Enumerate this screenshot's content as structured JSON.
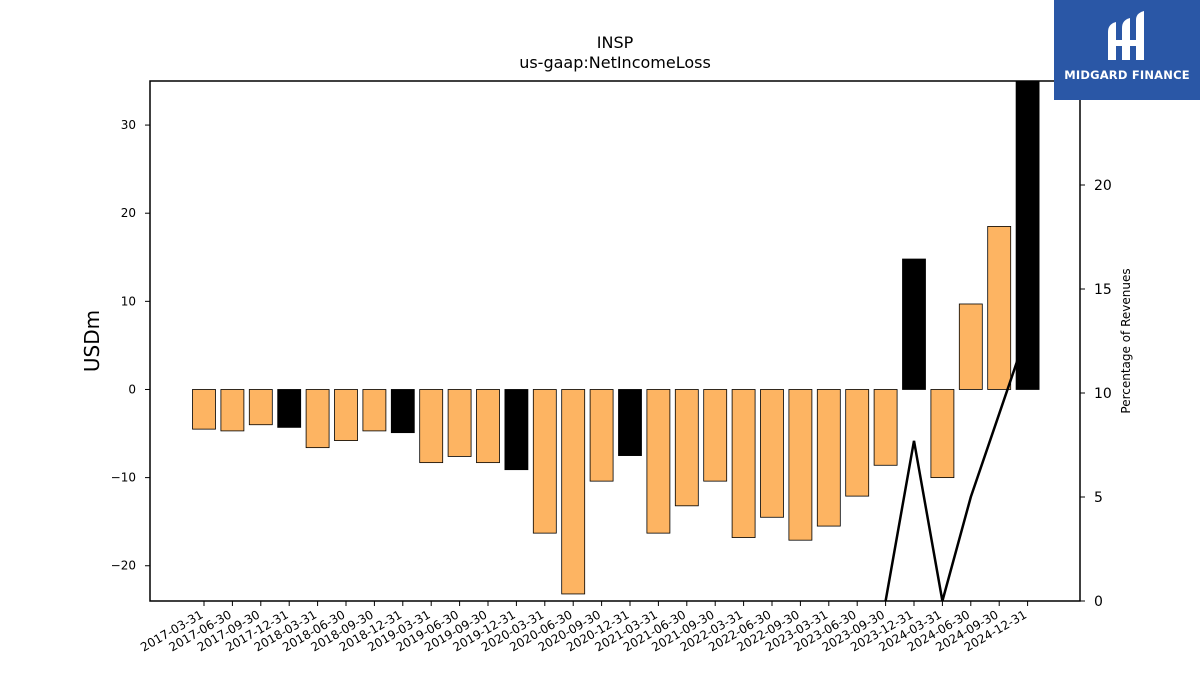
{
  "chart_data": {
    "type": "bar",
    "title": "INSP",
    "subtitle": "us-gaap:NetIncomeLoss",
    "ylabel": "USDm",
    "y2label": "Percentage of Revenues",
    "ylim": [
      -24,
      35
    ],
    "y2lim": [
      0,
      25
    ],
    "yticks": [
      -20,
      -10,
      0,
      10,
      20,
      30
    ],
    "y2ticks": [
      0,
      5,
      10,
      15,
      20
    ],
    "categories": [
      "2017-03-31",
      "2017-06-30",
      "2017-09-30",
      "2017-12-31",
      "2018-03-31",
      "2018-06-30",
      "2018-09-30",
      "2018-12-31",
      "2019-03-31",
      "2019-06-30",
      "2019-09-30",
      "2019-12-31",
      "2020-03-31",
      "2020-06-30",
      "2020-09-30",
      "2020-12-31",
      "2021-03-31",
      "2021-06-30",
      "2021-09-30",
      "2022-03-31",
      "2022-06-30",
      "2022-09-30",
      "2023-03-31",
      "2023-06-30",
      "2023-09-30",
      "2023-12-31",
      "2024-03-31",
      "2024-06-30",
      "2024-09-30",
      "2024-12-31"
    ],
    "values": [
      -4.5,
      -4.7,
      -4.0,
      -4.3,
      -6.6,
      -5.8,
      -4.7,
      -4.9,
      -8.3,
      -7.6,
      -8.3,
      -9.1,
      -16.3,
      -23.2,
      -10.4,
      -7.5,
      -16.3,
      -13.2,
      -10.4,
      -16.8,
      -14.5,
      -17.1,
      -15.5,
      -12.1,
      -8.6,
      14.8,
      -10.0,
      9.7,
      18.5,
      35.0
    ],
    "bar_colors": [
      "#fdb462",
      "#fdb462",
      "#fdb462",
      "#000000",
      "#fdb462",
      "#fdb462",
      "#fdb462",
      "#000000",
      "#fdb462",
      "#fdb462",
      "#fdb462",
      "#000000",
      "#fdb462",
      "#fdb462",
      "#fdb462",
      "#000000",
      "#fdb462",
      "#fdb462",
      "#fdb462",
      "#fdb462",
      "#fdb462",
      "#fdb462",
      "#fdb462",
      "#fdb462",
      "#fdb462",
      "#000000",
      "#fdb462",
      "#fdb462",
      "#fdb462",
      "#000000"
    ],
    "line_series": {
      "axis": "right",
      "color": "#000000",
      "points": [
        {
          "x": "2023-09-30",
          "y": 0
        },
        {
          "x": "2023-12-31",
          "y": 7.7
        },
        {
          "x": "2024-03-31",
          "y": 0
        },
        {
          "x": "2024-06-30",
          "y": 5.0
        },
        {
          "x": "2024-09-30",
          "y": 9.0
        },
        {
          "x": "2024-12-31",
          "y": 13.0
        }
      ]
    },
    "grid": false
  },
  "logo": {
    "text": "MIDGARD FINANCE",
    "color": "#2a57a6"
  }
}
